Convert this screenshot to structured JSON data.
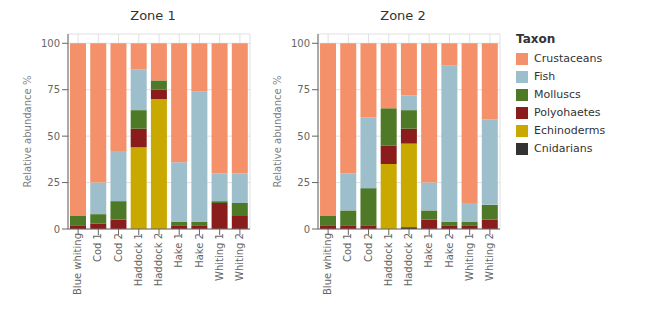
{
  "chart_data": [
    {
      "type": "bar",
      "title": "Zone 1",
      "ylabel": "Relative abundance %",
      "categories": [
        "Blue whiting",
        "Cod 1",
        "Cod 2",
        "Haddock 1",
        "Haddock 2",
        "Hake 1",
        "Hake 2",
        "Whiting 1",
        "Whiting 2"
      ],
      "series": [
        {
          "name": "Cnidarians",
          "color": "#333333",
          "values": [
            0,
            0,
            0,
            0,
            0,
            0,
            0,
            0,
            0
          ]
        },
        {
          "name": "Echinoderms",
          "color": "#c9a800",
          "values": [
            0,
            0,
            0,
            44,
            70,
            0,
            0,
            0,
            0
          ]
        },
        {
          "name": "Polyohaetes",
          "color": "#8b1c1c",
          "values": [
            2,
            3,
            5,
            10,
            5,
            2,
            2,
            14,
            7
          ]
        },
        {
          "name": "Molluscs",
          "color": "#4e7a28",
          "values": [
            5,
            5,
            10,
            10,
            5,
            2,
            2,
            1,
            7
          ]
        },
        {
          "name": "Fish",
          "color": "#9dbfcc",
          "values": [
            0,
            17,
            27,
            22,
            0,
            32,
            70,
            15,
            16
          ]
        },
        {
          "name": "Crustaceans",
          "color": "#f4916a",
          "values": [
            93,
            75,
            58,
            14,
            20,
            64,
            26,
            70,
            70
          ]
        }
      ],
      "ylim": [
        0,
        105
      ],
      "yticks": [
        0,
        25,
        50,
        75,
        100
      ],
      "grid": true,
      "stacked": true
    },
    {
      "type": "bar",
      "title": "Zone 2",
      "ylabel": "Relative abundance %",
      "legend_title": "Taxon",
      "categories": [
        "Blue whiting",
        "Cod 1",
        "Cod 2",
        "Haddock 1",
        "Haddock 2",
        "Hake 1",
        "Hake 2",
        "Whiting 1",
        "Whiting 2"
      ],
      "series": [
        {
          "name": "Cnidarians",
          "color": "#333333",
          "values": [
            0,
            0,
            0,
            0,
            1,
            0,
            0,
            0,
            0
          ]
        },
        {
          "name": "Echinoderms",
          "color": "#c9a800",
          "values": [
            0,
            0,
            0,
            35,
            45,
            0,
            0,
            0,
            0
          ]
        },
        {
          "name": "Polyohaetes",
          "color": "#8b1c1c",
          "values": [
            2,
            2,
            2,
            10,
            8,
            5,
            2,
            2,
            5
          ]
        },
        {
          "name": "Molluscs",
          "color": "#4e7a28",
          "values": [
            5,
            8,
            20,
            20,
            10,
            5,
            2,
            2,
            8
          ]
        },
        {
          "name": "Fish",
          "color": "#9dbfcc",
          "values": [
            0,
            20,
            38,
            0,
            8,
            15,
            84,
            10,
            46
          ]
        },
        {
          "name": "Crustaceans",
          "color": "#f4916a",
          "values": [
            93,
            70,
            40,
            35,
            28,
            75,
            12,
            86,
            41
          ]
        }
      ],
      "ylim": [
        0,
        105
      ],
      "yticks": [
        0,
        25,
        50,
        75,
        100
      ],
      "grid": true,
      "stacked": true,
      "legend": "right"
    }
  ]
}
